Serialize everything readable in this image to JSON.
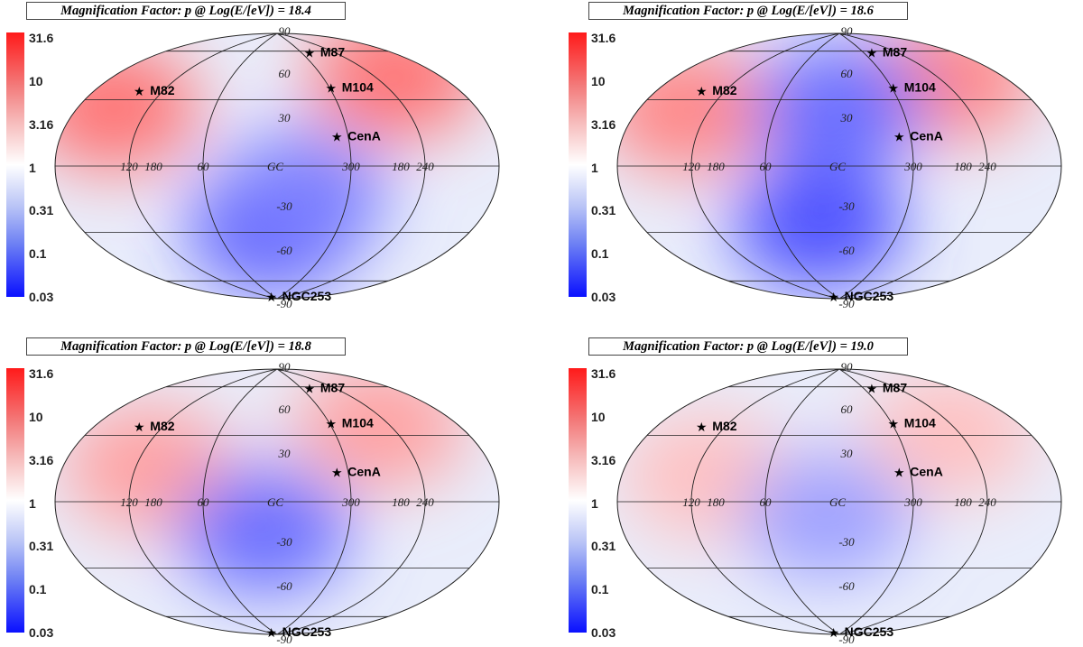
{
  "chart_data": [
    {
      "type": "heatmap",
      "projection": "aitoff",
      "title": "Magnification Factor: p @ Log(E/[eV]) = 18.4",
      "colorbar": {
        "scale": "log",
        "range": [
          0.03,
          31.6
        ],
        "ticks": [
          "31.6",
          "10",
          "3.16",
          "1",
          "0.31",
          "0.1",
          "0.03"
        ],
        "colors": [
          "#ff1a1a",
          "#ffffff",
          "#0a10ff"
        ]
      },
      "lat_labels": [
        "90",
        "60",
        "30",
        "-30",
        "-60",
        "-90"
      ],
      "lon_labels": [
        "180",
        "120",
        "60",
        "GC",
        "300",
        "240",
        "180"
      ],
      "sources": [
        {
          "name": "M87",
          "l": 283.8,
          "b": 74.5
        },
        {
          "name": "M104",
          "l": 298.5,
          "b": 51.1
        },
        {
          "name": "M82",
          "l": 141.4,
          "b": 40.6
        },
        {
          "name": "CenA",
          "l": 309.5,
          "b": 19.4
        },
        {
          "name": "NGC253",
          "l": 97.4,
          "b": -88.0
        }
      ],
      "regions": [
        {
          "l": 150,
          "b": 30,
          "value": 8
        },
        {
          "l": 220,
          "b": 50,
          "value": 8
        },
        {
          "l": 0,
          "b": -40,
          "value": 0.05
        },
        {
          "l": 340,
          "b": -20,
          "value": 0.15
        }
      ]
    },
    {
      "type": "heatmap",
      "projection": "aitoff",
      "title": "Magnification Factor: p @ Log(E/[eV]) = 18.6",
      "colorbar": {
        "scale": "log",
        "range": [
          0.03,
          31.6
        ],
        "ticks": [
          "31.6",
          "10",
          "3.16",
          "1",
          "0.31",
          "0.1",
          "0.03"
        ],
        "colors": [
          "#ff1a1a",
          "#ffffff",
          "#0a10ff"
        ]
      },
      "lat_labels": [
        "90",
        "60",
        "30",
        "-30",
        "-60",
        "-90"
      ],
      "lon_labels": [
        "180",
        "120",
        "60",
        "GC",
        "300",
        "240",
        "180"
      ],
      "sources": [
        {
          "name": "M87",
          "l": 283.8,
          "b": 74.5
        },
        {
          "name": "M104",
          "l": 298.5,
          "b": 51.1
        },
        {
          "name": "M82",
          "l": 141.4,
          "b": 40.6
        },
        {
          "name": "CenA",
          "l": 309.5,
          "b": 19.4
        },
        {
          "name": "NGC253",
          "l": 97.4,
          "b": -88.0
        }
      ],
      "regions": [
        {
          "l": 140,
          "b": 30,
          "value": 6
        },
        {
          "l": 230,
          "b": 50,
          "value": 6
        },
        {
          "l": 20,
          "b": -40,
          "value": 0.08
        },
        {
          "l": 0,
          "b": 40,
          "value": 0.12
        }
      ]
    },
    {
      "type": "heatmap",
      "projection": "aitoff",
      "title": "Magnification Factor: p @ Log(E/[eV]) = 18.8",
      "colorbar": {
        "scale": "log",
        "range": [
          0.03,
          31.6
        ],
        "ticks": [
          "31.6",
          "10",
          "3.16",
          "1",
          "0.31",
          "0.1",
          "0.03"
        ],
        "colors": [
          "#ff1a1a",
          "#ffffff",
          "#0a10ff"
        ]
      },
      "lat_labels": [
        "90",
        "60",
        "30",
        "-30",
        "-60",
        "-90"
      ],
      "lon_labels": [
        "180",
        "120",
        "60",
        "GC",
        "300",
        "240",
        "180"
      ],
      "sources": [
        {
          "name": "M87",
          "l": 283.8,
          "b": 74.5
        },
        {
          "name": "M104",
          "l": 298.5,
          "b": 51.1
        },
        {
          "name": "M82",
          "l": 141.4,
          "b": 40.6
        },
        {
          "name": "CenA",
          "l": 309.5,
          "b": 19.4
        },
        {
          "name": "NGC253",
          "l": 97.4,
          "b": -88.0
        }
      ],
      "regions": [
        {
          "l": 110,
          "b": 20,
          "value": 4
        },
        {
          "l": 250,
          "b": 45,
          "value": 4
        },
        {
          "l": 10,
          "b": -20,
          "value": 0.12
        }
      ]
    },
    {
      "type": "heatmap",
      "projection": "aitoff",
      "title": "Magnification Factor: p @ Log(E/[eV]) = 19.0",
      "colorbar": {
        "scale": "log",
        "range": [
          0.03,
          31.6
        ],
        "ticks": [
          "31.6",
          "10",
          "3.16",
          "1",
          "0.31",
          "0.1",
          "0.03"
        ],
        "colors": [
          "#ff1a1a",
          "#ffffff",
          "#0a10ff"
        ]
      },
      "lat_labels": [
        "90",
        "60",
        "30",
        "-30",
        "-60",
        "-90"
      ],
      "lon_labels": [
        "180",
        "120",
        "60",
        "GC",
        "300",
        "240",
        "180"
      ],
      "sources": [
        {
          "name": "M87",
          "l": 283.8,
          "b": 74.5
        },
        {
          "name": "M104",
          "l": 298.5,
          "b": 51.1
        },
        {
          "name": "M82",
          "l": 141.4,
          "b": 40.6
        },
        {
          "name": "CenA",
          "l": 309.5,
          "b": 19.4
        },
        {
          "name": "NGC253",
          "l": 97.4,
          "b": -88.0
        }
      ],
      "regions": [
        {
          "l": 110,
          "b": 15,
          "value": 2.5
        },
        {
          "l": 250,
          "b": 40,
          "value": 2.5
        },
        {
          "l": 10,
          "b": -10,
          "value": 0.25
        }
      ]
    }
  ]
}
